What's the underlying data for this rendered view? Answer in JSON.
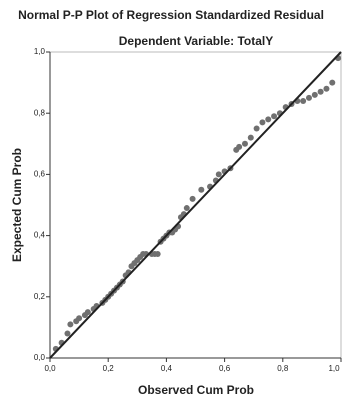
{
  "chart_data": {
    "type": "scatter",
    "title": "Normal P-P Plot of Regression Standardized Residual",
    "subtitle": "Dependent Variable: TotalY",
    "x_label": "Observed Cum Prob",
    "y_label": "Expected Cum Prob",
    "color": "#707070",
    "x": [
      0.02,
      0.04,
      0.06,
      0.07,
      0.09,
      0.1,
      0.12,
      0.13,
      0.15,
      0.16,
      0.18,
      0.19,
      0.2,
      0.21,
      0.22,
      0.23,
      0.24,
      0.25,
      0.26,
      0.27,
      0.28,
      0.29,
      0.3,
      0.31,
      0.32,
      0.33,
      0.35,
      0.36,
      0.37,
      0.38,
      0.39,
      0.4,
      0.41,
      0.42,
      0.43,
      0.44,
      0.45,
      0.46,
      0.47,
      0.49,
      0.52,
      0.55,
      0.57,
      0.58,
      0.6,
      0.62,
      0.64,
      0.65,
      0.67,
      0.69,
      0.71,
      0.73,
      0.75,
      0.77,
      0.79,
      0.81,
      0.83,
      0.85,
      0.87,
      0.89,
      0.91,
      0.93,
      0.95,
      0.97,
      0.99
    ],
    "values": [
      0.03,
      0.05,
      0.08,
      0.11,
      0.12,
      0.13,
      0.14,
      0.15,
      0.16,
      0.17,
      0.18,
      0.19,
      0.2,
      0.21,
      0.22,
      0.23,
      0.24,
      0.25,
      0.27,
      0.28,
      0.3,
      0.31,
      0.32,
      0.33,
      0.34,
      0.34,
      0.34,
      0.34,
      0.34,
      0.38,
      0.39,
      0.4,
      0.41,
      0.41,
      0.42,
      0.43,
      0.46,
      0.47,
      0.49,
      0.52,
      0.55,
      0.56,
      0.58,
      0.6,
      0.61,
      0.62,
      0.68,
      0.69,
      0.7,
      0.72,
      0.75,
      0.77,
      0.78,
      0.79,
      0.8,
      0.82,
      0.83,
      0.84,
      0.84,
      0.85,
      0.86,
      0.87,
      0.88,
      0.9,
      0.98
    ],
    "xlim": [
      0,
      1
    ],
    "ylim": [
      0,
      1
    ],
    "xticks": [
      {
        "value": 0,
        "label": "0,0"
      },
      {
        "value": 0.2,
        "label": "0,2"
      },
      {
        "value": 0.4,
        "label": "0,4"
      },
      {
        "value": 0.6,
        "label": "0,6"
      },
      {
        "value": 0.8,
        "label": "0,8"
      },
      {
        "value": 1,
        "label": "1,0"
      }
    ],
    "yticks": [
      {
        "value": 0,
        "label": "0,0"
      },
      {
        "value": 0.2,
        "label": "0,2"
      },
      {
        "value": 0.4,
        "label": "0,4"
      },
      {
        "value": 0.6,
        "label": "0,6"
      },
      {
        "value": 0.8,
        "label": "0,8"
      },
      {
        "value": 1,
        "label": "1,0"
      }
    ]
  }
}
